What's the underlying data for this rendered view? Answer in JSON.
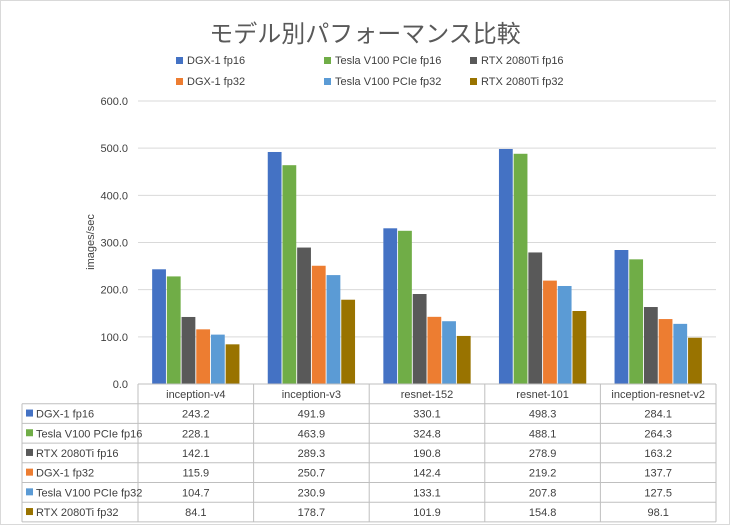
{
  "chart_data": {
    "type": "bar",
    "title": "モデル別パフォーマンス比較",
    "ylabel": "images/sec",
    "xlabel": "",
    "ylim": [
      0,
      600
    ],
    "ytick_step": 100,
    "ytick_labels": [
      "0.0",
      "100.0",
      "200.0",
      "300.0",
      "400.0",
      "500.0",
      "600.0"
    ],
    "grid": true,
    "legend_position": "top",
    "data_table": true,
    "categories": [
      "inception-v4",
      "inception-v3",
      "resnet-152",
      "resnet-101",
      "inception-resnet-v2"
    ],
    "series": [
      {
        "name": "DGX-1 fp16",
        "color": "#4472c4",
        "values": [
          243.2,
          491.9,
          330.1,
          498.3,
          284.1
        ]
      },
      {
        "name": "Tesla V100 PCIe fp16",
        "color": "#70ad47",
        "values": [
          228.1,
          463.9,
          324.8,
          488.1,
          264.3
        ]
      },
      {
        "name": "RTX 2080Ti fp16",
        "color": "#595959",
        "values": [
          142.1,
          289.3,
          190.8,
          278.9,
          163.2
        ]
      },
      {
        "name": "DGX-1 fp32",
        "color": "#ed7d31",
        "values": [
          115.9,
          250.7,
          142.4,
          219.2,
          137.7
        ]
      },
      {
        "name": "Tesla V100 PCIe fp32",
        "color": "#5b9bd5",
        "values": [
          104.7,
          230.9,
          133.1,
          207.8,
          127.5
        ]
      },
      {
        "name": "RTX 2080Ti fp32",
        "color": "#997300",
        "values": [
          84.1,
          178.7,
          101.9,
          154.8,
          98.1
        ]
      }
    ]
  }
}
